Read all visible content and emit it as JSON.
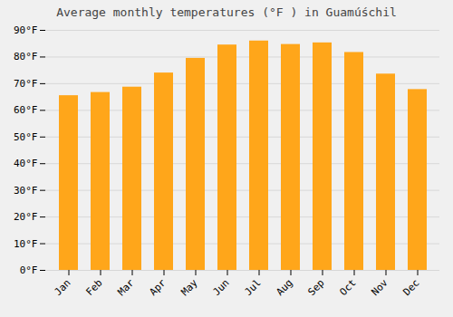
{
  "chart_data": {
    "type": "bar",
    "title": "Average monthly temperatures (°F ) in Guamúśchil",
    "categories": [
      "Jan",
      "Feb",
      "Mar",
      "Apr",
      "May",
      "Jun",
      "Jul",
      "Aug",
      "Sep",
      "Oct",
      "Nov",
      "Dec"
    ],
    "values": [
      65.5,
      66.7,
      68.7,
      74.0,
      79.5,
      84.5,
      86.0,
      84.7,
      85.3,
      81.7,
      73.6,
      67.8
    ],
    "color": "#ffa61a",
    "ylim": [
      0,
      90
    ],
    "yticks": [
      {
        "value": 0,
        "label": "0°F"
      },
      {
        "value": 10,
        "label": "10°F"
      },
      {
        "value": 20,
        "label": "20°F"
      },
      {
        "value": 30,
        "label": "30°F"
      },
      {
        "value": 40,
        "label": "40°F"
      },
      {
        "value": 50,
        "label": "50°F"
      },
      {
        "value": 60,
        "label": "60°F"
      },
      {
        "value": 70,
        "label": "70°F"
      },
      {
        "value": 80,
        "label": "80°F"
      },
      {
        "value": 90,
        "label": "90°F"
      }
    ],
    "grid": true
  }
}
